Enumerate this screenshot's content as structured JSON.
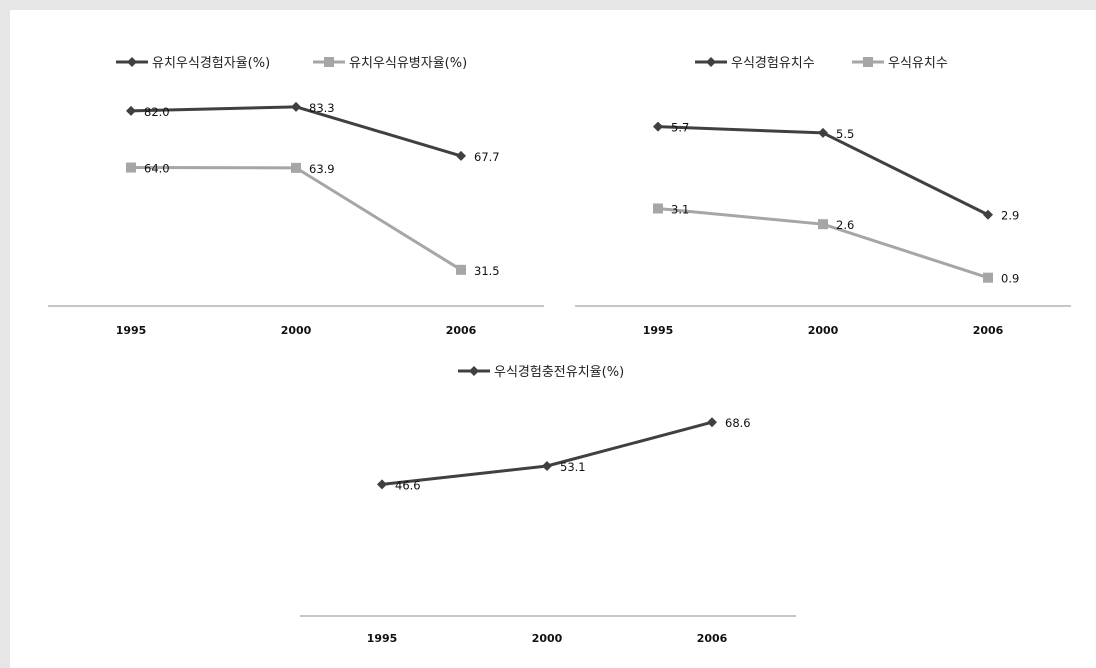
{
  "chart_data": [
    {
      "type": "line",
      "categories": [
        "1995",
        "2000",
        "2006"
      ],
      "series": [
        {
          "name": "유치우식경험자율(%)",
          "values": [
            82.0,
            83.3,
            67.7
          ],
          "color": "#404040",
          "marker": "diamond"
        },
        {
          "name": "유치우식유병자율(%)",
          "values": [
            64.0,
            63.9,
            31.5
          ],
          "color": "#a6a6a6",
          "marker": "square"
        }
      ],
      "data_labels": [
        [
          "82.0",
          "83.3",
          "67.7"
        ],
        [
          "64.0",
          "63.9",
          "31.5"
        ]
      ],
      "ylim": [
        20,
        95
      ],
      "grid": false,
      "legend_position": "top"
    },
    {
      "type": "line",
      "categories": [
        "1995",
        "2000",
        "2006"
      ],
      "series": [
        {
          "name": "우식경험유치수",
          "values": [
            5.7,
            5.5,
            2.9
          ],
          "color": "#404040",
          "marker": "diamond"
        },
        {
          "name": "우식유치수",
          "values": [
            3.1,
            2.6,
            0.9
          ],
          "color": "#a6a6a6",
          "marker": "square"
        }
      ],
      "data_labels": [
        [
          "5.7",
          "5.5",
          "2.9"
        ],
        [
          "3.1",
          "2.6",
          "0.9"
        ]
      ],
      "ylim": [
        0,
        7.5
      ],
      "grid": false,
      "legend_position": "top"
    },
    {
      "type": "line",
      "categories": [
        "1995",
        "2000",
        "2006"
      ],
      "series": [
        {
          "name": "우식경험충전유치율(%)",
          "values": [
            46.6,
            53.1,
            68.6
          ],
          "color": "#404040",
          "marker": "diamond"
        }
      ],
      "data_labels": [
        [
          "46.6",
          "53.1",
          "68.6"
        ]
      ],
      "ylim": [
        0,
        80
      ],
      "grid": false,
      "legend_position": "top"
    }
  ]
}
